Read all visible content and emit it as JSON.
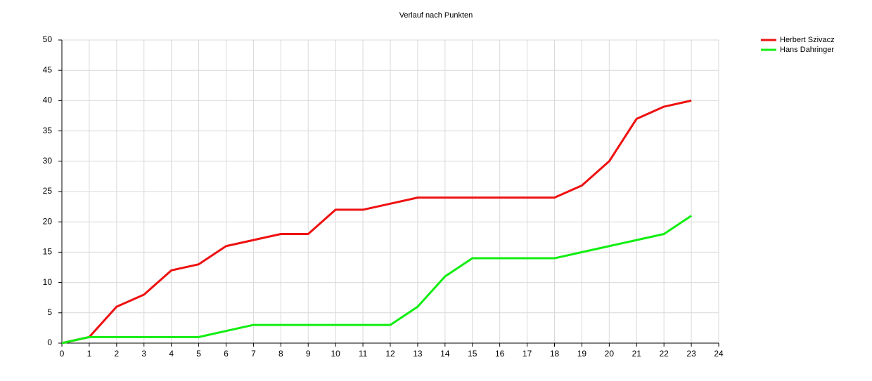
{
  "chart_data": {
    "type": "line",
    "title": "Verlauf nach Punkten",
    "x": [
      0,
      1,
      2,
      3,
      4,
      5,
      6,
      7,
      8,
      9,
      10,
      11,
      12,
      13,
      14,
      15,
      16,
      17,
      18,
      19,
      20,
      21,
      22,
      23
    ],
    "series": [
      {
        "name": "Herbert Szivacz",
        "color": "#ee1111",
        "values": [
          0,
          1,
          6,
          8,
          12,
          13,
          16,
          17,
          18,
          18,
          22,
          22,
          23,
          24,
          24,
          24,
          24,
          24,
          24,
          26,
          30,
          37,
          39,
          40
        ]
      },
      {
        "name": "Hans Dahringer",
        "color": "#11ee11",
        "values": [
          0,
          1,
          1,
          1,
          1,
          1,
          2,
          3,
          3,
          3,
          3,
          3,
          3,
          6,
          11,
          14,
          14,
          14,
          14,
          15,
          16,
          17,
          18,
          21
        ]
      }
    ],
    "xlim": [
      0,
      24
    ],
    "xticks": [
      0,
      1,
      2,
      3,
      4,
      5,
      6,
      7,
      8,
      9,
      10,
      11,
      12,
      13,
      14,
      15,
      16,
      17,
      18,
      19,
      20,
      21,
      22,
      23,
      24
    ],
    "ylim": [
      0,
      50
    ],
    "yticks": [
      0,
      5,
      10,
      15,
      20,
      25,
      30,
      35,
      40,
      45,
      50
    ],
    "grid": true,
    "legend": "top-right"
  }
}
